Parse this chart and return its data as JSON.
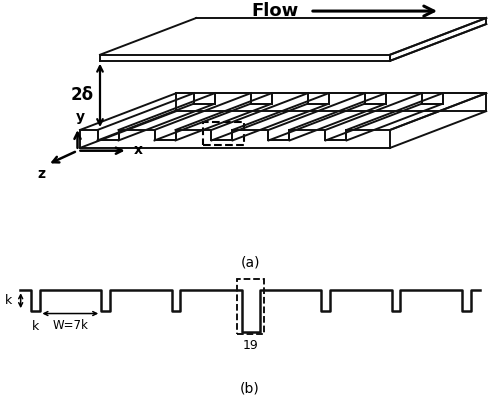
{
  "title_a": "(a)",
  "title_b": "(b)",
  "flow_text": "Flow",
  "delta_text": "2δ",
  "label_x": "x",
  "label_y": "y",
  "label_z": "z",
  "label_k_left": "k",
  "label_k_bottom": "k",
  "label_w": "W=7k",
  "label_19": "19",
  "line_color": "#111111",
  "lw": 1.4,
  "lw2": 1.8
}
